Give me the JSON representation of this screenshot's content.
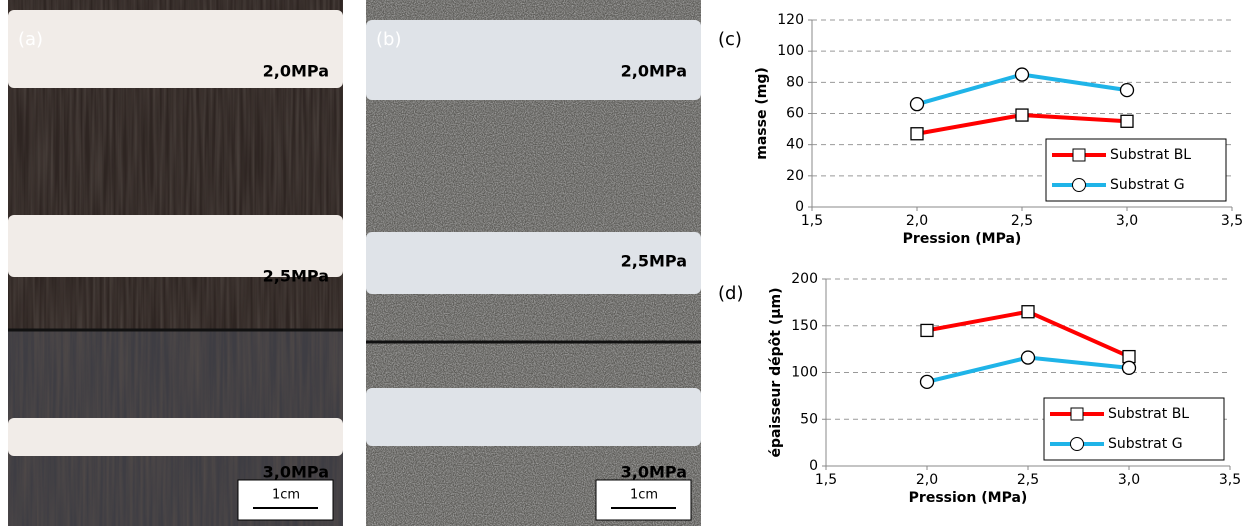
{
  "panels": [
    {
      "label": "(a)",
      "pressures": [
        "2,0MPa",
        "2,5MPa",
        "3,0MPa"
      ],
      "scale": "1cm"
    },
    {
      "label": "(b)",
      "pressures": [
        "2,0MPa",
        "2,5MPa",
        "3,0MPa"
      ],
      "scale": "1cm"
    }
  ],
  "chart_data": [
    {
      "type": "line",
      "label": "(c)",
      "xlabel": "Pression (MPa)",
      "ylabel": "masse (mg)",
      "x": [
        2.0,
        2.5,
        3.0
      ],
      "series": [
        {
          "name": "Substrat BL",
          "color": "#ff0000",
          "marker": "square",
          "values": [
            47,
            59,
            55
          ]
        },
        {
          "name": "Substrat G",
          "color": "#1fb4e8",
          "marker": "circle",
          "values": [
            66,
            85,
            75
          ]
        }
      ],
      "xlim": [
        1.5,
        3.5
      ],
      "xticks": [
        {
          "value": 1.5,
          "label": "1,5"
        },
        {
          "value": 2.0,
          "label": "2,0"
        },
        {
          "value": 2.5,
          "label": "2,5"
        },
        {
          "value": 3.0,
          "label": "3,0"
        },
        {
          "value": 3.5,
          "label": "3,5"
        }
      ],
      "ylim": [
        0,
        120
      ],
      "yticks": [
        0,
        20,
        40,
        60,
        80,
        100,
        120
      ],
      "grid": true,
      "legend": "lower right"
    },
    {
      "type": "line",
      "label": "(d)",
      "xlabel": "Pression (MPa)",
      "ylabel": "épaisseur dépôt (µm)",
      "x": [
        2.0,
        2.5,
        3.0
      ],
      "series": [
        {
          "name": "Substrat BL",
          "color": "#ff0000",
          "marker": "square",
          "values": [
            145,
            165,
            117
          ]
        },
        {
          "name": "Substrat G",
          "color": "#1fb4e8",
          "marker": "circle",
          "values": [
            90,
            116,
            105
          ]
        }
      ],
      "xlim": [
        1.5,
        3.5
      ],
      "xticks": [
        {
          "value": 1.5,
          "label": "1,5"
        },
        {
          "value": 2.0,
          "label": "2,0"
        },
        {
          "value": 2.5,
          "label": "2,5"
        },
        {
          "value": 3.0,
          "label": "3,0"
        },
        {
          "value": 3.5,
          "label": "3,5"
        }
      ],
      "ylim": [
        0,
        200
      ],
      "yticks": [
        0,
        50,
        100,
        150,
        200
      ],
      "grid": true,
      "legend": "lower right"
    }
  ]
}
